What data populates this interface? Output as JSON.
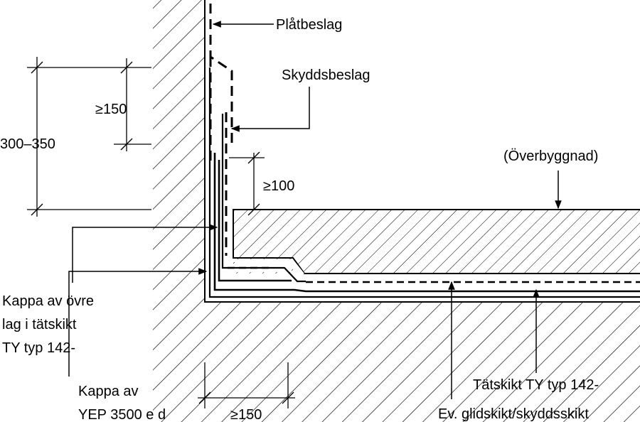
{
  "labels": {
    "platbeslag": "Plåtbeslag",
    "skyddsbeslag": "Skyddsbeslag",
    "overbyggnad": "(Överbyggnad)",
    "kappa_ovre_1": "Kappa av övre",
    "kappa_ovre_2": "lag i tätskikt",
    "kappa_ovre_3": "TY typ 142-",
    "kappa_yep_1": "Kappa av",
    "kappa_yep_2": "YEP 3500 e d",
    "tatskikt": "Tätskikt TY typ 142-",
    "glidskikt": "Ev. glidskikt/skyddsskikt"
  },
  "dimensions": {
    "total_height": "300–350",
    "upper_height": "≥150",
    "gap": "≥100",
    "bottom_width": "≥150"
  }
}
